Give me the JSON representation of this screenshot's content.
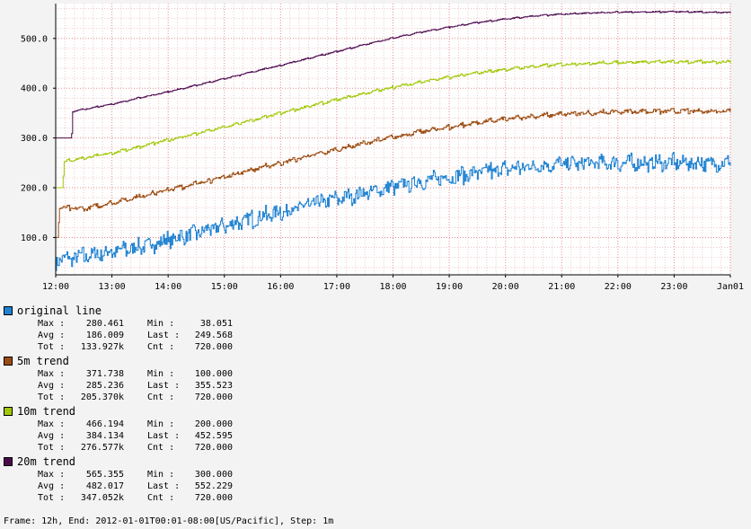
{
  "chart_data": {
    "type": "line",
    "title": "",
    "xlabel": "",
    "ylabel": "",
    "x_ticks": [
      "12:00",
      "13:00",
      "14:00",
      "15:00",
      "16:00",
      "17:00",
      "18:00",
      "19:00",
      "20:00",
      "21:00",
      "22:00",
      "23:00",
      "Jan01"
    ],
    "y_ticks": [
      "100.0",
      "200.0",
      "300.0",
      "400.0",
      "500.0"
    ],
    "y_tick_values": [
      100,
      200,
      300,
      400,
      500
    ],
    "ylim": [
      25,
      570
    ],
    "grid": true,
    "legend_placement": "bottom",
    "series": [
      {
        "name": "original line",
        "color": "#1e82d2",
        "hours": [
          0,
          0.5,
          1,
          1.5,
          2,
          2.5,
          3,
          3.5,
          4,
          4.5,
          5,
          5.5,
          6,
          6.5,
          7,
          7.5,
          8,
          8.5,
          9,
          9.5,
          10,
          10.5,
          11,
          11.5,
          12
        ],
        "values": [
          55,
          63,
          72,
          82,
          95,
          110,
          124,
          138,
          152,
          166,
          178,
          190,
          202,
          213,
          222,
          231,
          238,
          244,
          248,
          250,
          250,
          250,
          251,
          250,
          250
        ],
        "noise": 17
      },
      {
        "name": "5m trend",
        "color": "#9c4c10",
        "hours": [
          0,
          0.04,
          0.06,
          0.5,
          1,
          1.5,
          2,
          2.5,
          3,
          3.5,
          4,
          4.5,
          5,
          5.5,
          6,
          6.5,
          7,
          7.5,
          8,
          8.5,
          9,
          9.5,
          10,
          10.5,
          11,
          11.5,
          12
        ],
        "values": [
          100,
          100,
          160,
          158,
          170,
          183,
          196,
          209,
          222,
          237,
          250,
          264,
          277,
          290,
          302,
          313,
          322,
          331,
          338,
          344,
          348,
          350,
          353,
          354,
          354,
          354,
          355
        ],
        "noise": 8
      },
      {
        "name": "10m trend",
        "color": "#a2c80a",
        "hours": [
          0,
          0.12,
          0.15,
          0.5,
          1,
          1.5,
          2,
          2.5,
          3,
          3.5,
          4,
          4.5,
          5,
          5.5,
          6,
          6.5,
          7,
          7.5,
          8,
          8.5,
          9,
          9.5,
          10,
          10.5,
          11,
          11.5,
          12
        ],
        "values": [
          200,
          200,
          253,
          260,
          270,
          283,
          296,
          309,
          322,
          336,
          350,
          364,
          377,
          390,
          402,
          413,
          422,
          431,
          438,
          444,
          448,
          450,
          452,
          453,
          453,
          453,
          453
        ],
        "noise": 5
      },
      {
        "name": "20m trend",
        "color": "#4c0a4e",
        "hours": [
          0,
          0.28,
          0.3,
          0.5,
          1,
          1.5,
          2,
          2.5,
          3,
          3.5,
          4,
          4.5,
          5,
          5.5,
          6,
          6.5,
          7,
          7.5,
          8,
          8.5,
          9,
          9.5,
          10,
          10.5,
          11,
          11.5,
          12
        ],
        "values": [
          300,
          300,
          353,
          358,
          368,
          381,
          393,
          406,
          419,
          433,
          446,
          460,
          474,
          488,
          501,
          513,
          523,
          532,
          539,
          545,
          549,
          551,
          553,
          553,
          554,
          553,
          552
        ],
        "noise": 2.5
      }
    ]
  },
  "legend": [
    {
      "name": "original line",
      "color": "#1e82d2",
      "stats": {
        "max": "280.461",
        "min": "38.051",
        "avg": "186.009",
        "last": "249.568",
        "tot": "133.927k",
        "cnt": "720.000"
      }
    },
    {
      "name": "5m trend",
      "color": "#9c4c10",
      "stats": {
        "max": "371.738",
        "min": "100.000",
        "avg": "285.236",
        "last": "355.523",
        "tot": "205.370k",
        "cnt": "720.000"
      }
    },
    {
      "name": "10m trend",
      "color": "#a2c80a",
      "stats": {
        "max": "466.194",
        "min": "200.000",
        "avg": "384.134",
        "last": "452.595",
        "tot": "276.577k",
        "cnt": "720.000"
      }
    },
    {
      "name": "20m trend",
      "color": "#4c0a4e",
      "stats": {
        "max": "565.355",
        "min": "300.000",
        "avg": "482.017",
        "last": "552.229",
        "tot": "347.052k",
        "cnt": "720.000"
      }
    }
  ],
  "stat_labels": {
    "max": "Max :",
    "min": "Min  :",
    "avg": "Avg :",
    "last": "Last :",
    "tot": "Tot :",
    "cnt": "Cnt  :"
  },
  "footer": "Frame: 12h, End: 2012-01-01T00:01-08:00[US/Pacific], Step: 1m"
}
